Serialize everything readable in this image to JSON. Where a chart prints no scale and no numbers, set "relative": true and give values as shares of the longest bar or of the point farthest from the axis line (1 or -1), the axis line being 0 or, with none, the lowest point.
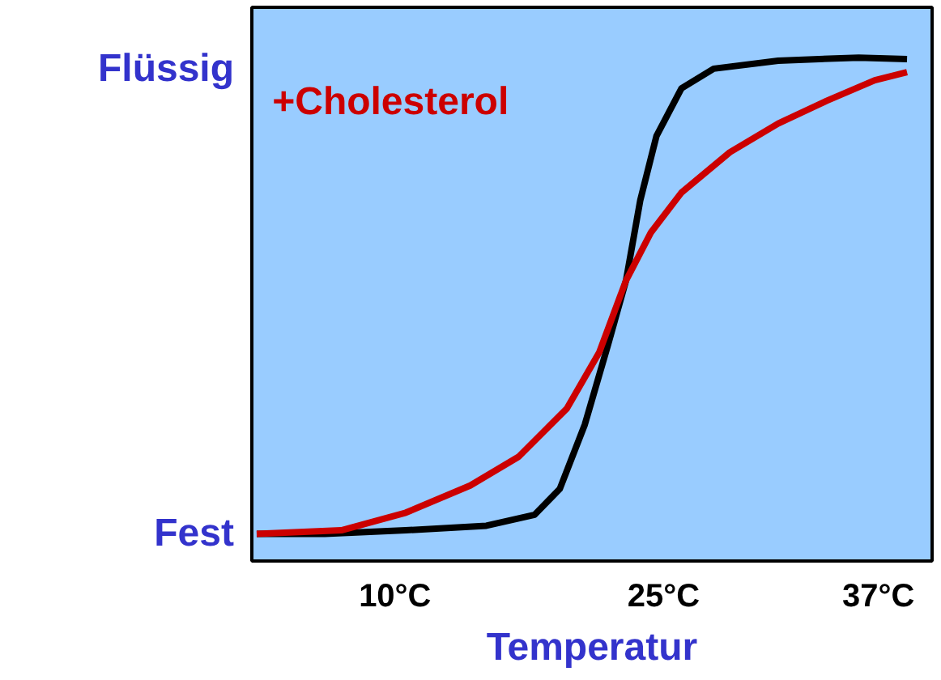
{
  "chart_data": {
    "type": "line",
    "xlabel": "Temperatur",
    "xlim": [
      2,
      40
    ],
    "xticks": [
      {
        "value": 10,
        "label": "10°C"
      },
      {
        "value": 25,
        "label": "25°C"
      },
      {
        "value": 37,
        "label": "37°C"
      }
    ],
    "relative": true,
    "annotations": [
      "Fest",
      "Flüssig"
    ],
    "grid": false,
    "legend": false,
    "marker": "none",
    "line_style": "solid",
    "series": [
      {
        "color": "#000000",
        "x": [
          2.27,
          6.07,
          10.6,
          15.1,
          17.8,
          19.2,
          20.6,
          21.9,
          22.9,
          23.7,
          24.6,
          26.0,
          27.8,
          31.4,
          35.9,
          38.6
        ],
        "values": [
          0.054,
          0.054,
          0.061,
          0.07,
          0.092,
          0.143,
          0.271,
          0.43,
          0.557,
          0.717,
          0.844,
          0.939,
          0.978,
          0.994,
          1,
          0.997
        ]
      },
      {
        "name": "+Cholesterol",
        "color": "#cc0000",
        "x": [
          2.27,
          7.0,
          10.6,
          14.2,
          16.9,
          19.6,
          21.4,
          22.9,
          24.3,
          26.0,
          28.7,
          31.4,
          34.1,
          36.8,
          38.6
        ],
        "values": [
          0.054,
          0.061,
          0.096,
          0.15,
          0.207,
          0.303,
          0.414,
          0.557,
          0.653,
          0.732,
          0.812,
          0.869,
          0.914,
          0.955,
          0.971
        ]
      }
    ]
  }
}
